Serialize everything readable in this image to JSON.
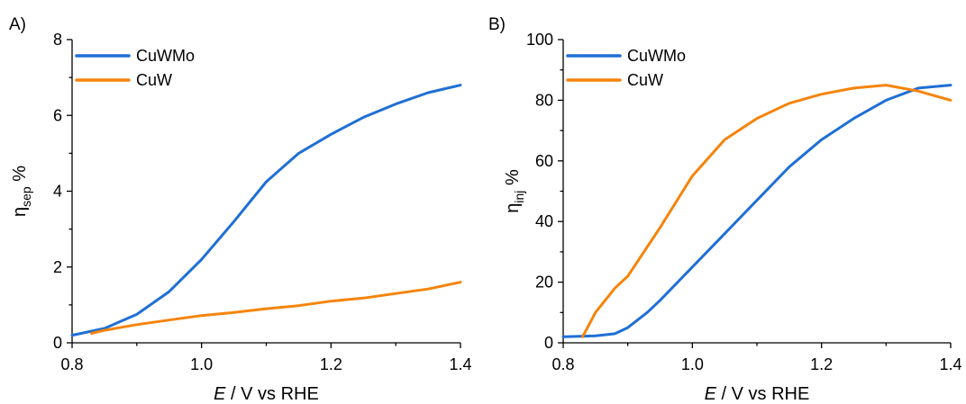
{
  "chart_data": [
    {
      "type": "line",
      "panel_label": "A)",
      "xlabel_italic": "E",
      "xlabel_rest": " / V vs RHE",
      "ylabel_symbol": "η",
      "ylabel_sub": "sep",
      "ylabel_unit": " %",
      "xlim": [
        0.8,
        1.4
      ],
      "ylim": [
        0,
        8
      ],
      "xticks": [
        0.8,
        1.0,
        1.2,
        1.4
      ],
      "xtick_labels": [
        "0.8",
        "1.0",
        "1.2",
        "1.4"
      ],
      "yticks": [
        0,
        2,
        4,
        6,
        8
      ],
      "ytick_labels": [
        "0",
        "2",
        "4",
        "6",
        "8"
      ],
      "legend_position": "top-left",
      "series": [
        {
          "name": "CuWMo",
          "color": "#1f6fd6",
          "points": [
            [
              0.8,
              0.2
            ],
            [
              0.85,
              0.38
            ],
            [
              0.9,
              0.75
            ],
            [
              0.95,
              1.35
            ],
            [
              1.0,
              2.2
            ],
            [
              1.05,
              3.2
            ],
            [
              1.1,
              4.25
            ],
            [
              1.15,
              5.0
            ],
            [
              1.2,
              5.5
            ],
            [
              1.25,
              5.95
            ],
            [
              1.3,
              6.3
            ],
            [
              1.35,
              6.6
            ],
            [
              1.4,
              6.8
            ]
          ]
        },
        {
          "name": "CuW",
          "color": "#f5840c",
          "points": [
            [
              0.83,
              0.25
            ],
            [
              0.85,
              0.33
            ],
            [
              0.9,
              0.48
            ],
            [
              0.95,
              0.6
            ],
            [
              1.0,
              0.72
            ],
            [
              1.05,
              0.8
            ],
            [
              1.1,
              0.9
            ],
            [
              1.15,
              0.98
            ],
            [
              1.2,
              1.1
            ],
            [
              1.25,
              1.18
            ],
            [
              1.3,
              1.3
            ],
            [
              1.35,
              1.42
            ],
            [
              1.4,
              1.6
            ]
          ]
        }
      ]
    },
    {
      "type": "line",
      "panel_label": "B)",
      "xlabel_italic": "E",
      "xlabel_rest": " / V vs RHE",
      "ylabel_symbol": "η",
      "ylabel_sub": "inj",
      "ylabel_unit": " %",
      "xlim": [
        0.8,
        1.4
      ],
      "ylim": [
        0,
        100
      ],
      "xticks": [
        0.8,
        1.0,
        1.2,
        1.4
      ],
      "xtick_labels": [
        "0.8",
        "1.0",
        "1.2",
        "1.4"
      ],
      "yticks": [
        0,
        20,
        40,
        60,
        80,
        100
      ],
      "ytick_labels": [
        "0",
        "20",
        "40",
        "60",
        "80",
        "100"
      ],
      "legend_position": "top-left",
      "series": [
        {
          "name": "CuWMo",
          "color": "#1f6fd6",
          "points": [
            [
              0.8,
              2
            ],
            [
              0.85,
              2.3
            ],
            [
              0.88,
              3
            ],
            [
              0.9,
              5
            ],
            [
              0.93,
              10
            ],
            [
              0.95,
              14
            ],
            [
              1.0,
              25
            ],
            [
              1.05,
              36
            ],
            [
              1.1,
              47
            ],
            [
              1.15,
              58
            ],
            [
              1.2,
              67
            ],
            [
              1.25,
              74
            ],
            [
              1.3,
              80
            ],
            [
              1.35,
              84
            ],
            [
              1.4,
              85
            ]
          ]
        },
        {
          "name": "CuW",
          "color": "#f5840c",
          "points": [
            [
              0.83,
              2
            ],
            [
              0.84,
              6
            ],
            [
              0.85,
              10
            ],
            [
              0.88,
              18
            ],
            [
              0.9,
              22
            ],
            [
              0.95,
              38
            ],
            [
              1.0,
              55
            ],
            [
              1.05,
              67
            ],
            [
              1.1,
              74
            ],
            [
              1.15,
              79
            ],
            [
              1.2,
              82
            ],
            [
              1.25,
              84
            ],
            [
              1.3,
              85
            ],
            [
              1.35,
              83
            ],
            [
              1.4,
              80
            ]
          ]
        }
      ]
    }
  ]
}
